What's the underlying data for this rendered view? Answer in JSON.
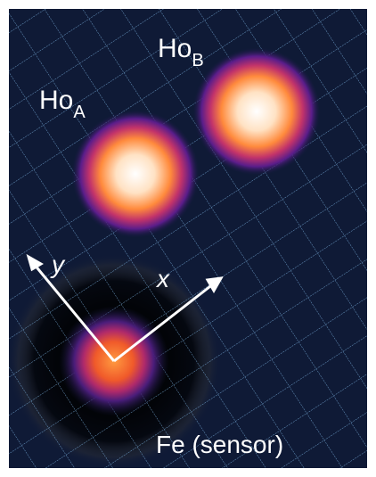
{
  "labels": [
    {
      "text": "Ho",
      "subscript": "A"
    },
    {
      "text": "Ho",
      "subscript": "B"
    },
    {
      "text": "Fe (sensor)"
    }
  ],
  "axes": {
    "x": "x",
    "y": "y"
  }
}
